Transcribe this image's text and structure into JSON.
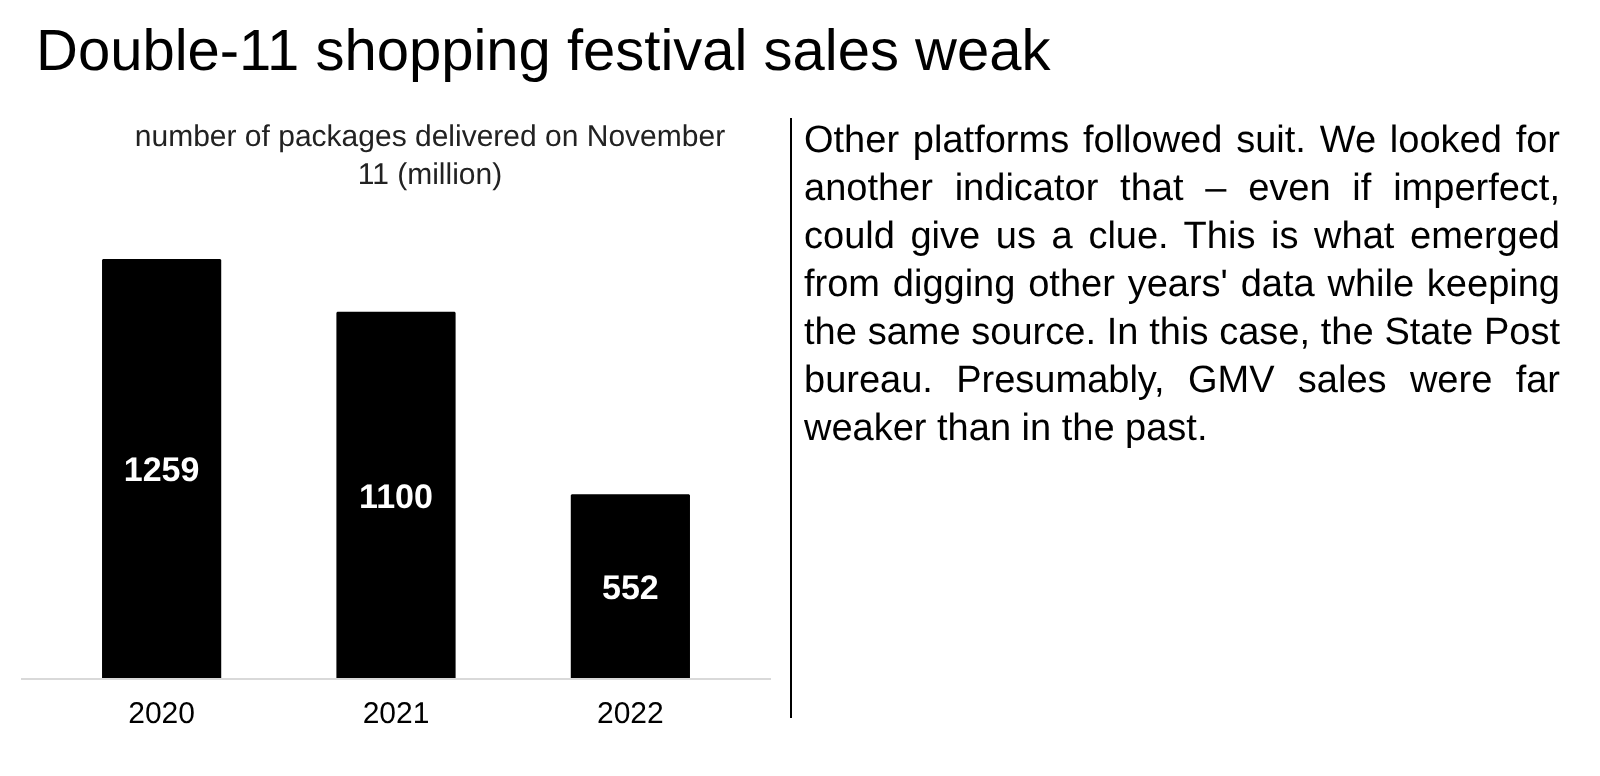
{
  "chart_data": {
    "type": "bar",
    "title": "Double-11 shopping festival sales weak",
    "subtitle": "number of packages delivered on November 11 (million)",
    "categories": [
      "2020",
      "2021",
      "2022"
    ],
    "values": [
      1259,
      1100,
      552
    ],
    "color": "#000000",
    "data_labels": true,
    "grid": false,
    "tick_labels": "x",
    "annotations": [
      "Other platforms followed suit. We looked for another indicator that – even if imperfect, could give us a clue. This is what emerged from digging other years' data while keeping the same source. In this case, the State Post bureau. Presumably, GMV sales were far weaker than in the past."
    ]
  }
}
